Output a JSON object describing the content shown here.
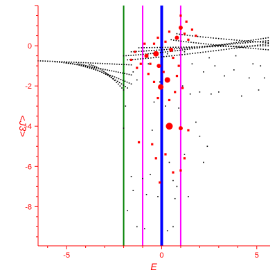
{
  "chart_data": {
    "type": "scatter",
    "title": "",
    "xlabel": "E",
    "ylabel": "<J3>",
    "xlim": [
      -6.5,
      5.7
    ],
    "ylim": [
      -9.95,
      2.0
    ],
    "x_ticks": [
      -5,
      0,
      5
    ],
    "y_ticks": [
      0,
      -2,
      -4,
      -6,
      -8
    ],
    "grid": false,
    "colors": {
      "axis": "#ff0000",
      "points_black": "#000000",
      "points_red": "#ff0000",
      "line_green": "#008000",
      "line_magenta": "#ff00ff",
      "line_blue": "#0000ff"
    },
    "vertical_lines": [
      {
        "x": -2.0,
        "color": "#008000",
        "width": 2
      },
      {
        "x": -1.0,
        "color": "#ff00ff",
        "width": 2
      },
      {
        "x": 0.0,
        "color": "#0000ff",
        "width": 4
      },
      {
        "x": 1.0,
        "color": "#ff00ff",
        "width": 2
      }
    ],
    "black_branches": [
      {
        "x_start": -6.5,
        "y_start": -0.75,
        "x_end": -1.6,
        "y_end": -0.95,
        "n": 40,
        "curve": 0.1
      },
      {
        "x_start": -5.6,
        "y_start": -0.8,
        "x_end": -1.6,
        "y_end": -1.45,
        "n": 36,
        "curve": 0.25
      },
      {
        "x_start": -5.0,
        "y_start": -0.85,
        "x_end": -1.6,
        "y_end": -1.9,
        "n": 32,
        "curve": 0.35
      },
      {
        "x_start": -4.4,
        "y_start": -0.9,
        "x_end": -1.8,
        "y_end": -2.1,
        "n": 26,
        "curve": 0.45
      },
      {
        "x_start": -3.8,
        "y_start": -0.95,
        "x_end": -2.0,
        "y_end": -2.2,
        "n": 20,
        "curve": 0.55
      },
      {
        "x_start": -2.0,
        "y_start": -0.5,
        "x_end": 5.6,
        "y_end": 0.4,
        "n": 60,
        "curve": 0.25
      },
      {
        "x_start": -1.8,
        "y_start": -0.7,
        "x_end": 5.6,
        "y_end": 0.1,
        "n": 55,
        "curve": 0.2
      },
      {
        "x_start": -1.6,
        "y_start": -0.3,
        "x_end": 5.6,
        "y_end": 0.25,
        "n": 55,
        "curve": 0.15
      },
      {
        "x_start": -1.2,
        "y_start": -0.1,
        "x_end": 5.6,
        "y_end": 0.0,
        "n": 50,
        "curve": 0.05
      },
      {
        "x_start": 0.5,
        "y_start": 0.3,
        "x_end": 5.6,
        "y_end": -0.2,
        "n": 40,
        "curve": -0.15
      },
      {
        "x_start": 0.8,
        "y_start": 0.6,
        "x_end": 5.6,
        "y_end": 0.15,
        "n": 36,
        "curve": -0.2
      }
    ],
    "black_points": [
      [
        -2.0,
        -4.1
      ],
      [
        -1.6,
        -6.5
      ],
      [
        -1.0,
        -6.6
      ],
      [
        -0.6,
        -6.4
      ],
      [
        0.6,
        -6.7
      ],
      [
        0.8,
        -7.0
      ],
      [
        -1.5,
        -7.2
      ],
      [
        -0.8,
        -7.4
      ],
      [
        -0.2,
        -7.5
      ],
      [
        0.7,
        -7.6
      ],
      [
        1.4,
        -7.5
      ],
      [
        -1.3,
        -9.0
      ],
      [
        -0.9,
        -9.1
      ],
      [
        0.3,
        -9.2
      ],
      [
        0.6,
        -9.0
      ],
      [
        1.5,
        -2.4
      ],
      [
        2.0,
        -2.3
      ],
      [
        2.6,
        -2.4
      ],
      [
        3.0,
        -2.3
      ],
      [
        4.2,
        -2.5
      ],
      [
        5.1,
        -2.2
      ],
      [
        2.2,
        -1.3
      ],
      [
        2.8,
        -1.0
      ],
      [
        3.3,
        -1.5
      ],
      [
        3.8,
        -1.2
      ],
      [
        4.6,
        -1.6
      ],
      [
        5.2,
        -1.0
      ],
      [
        1.8,
        -3.8
      ],
      [
        2.0,
        -4.5
      ],
      [
        2.4,
        -5.0
      ],
      [
        2.2,
        -5.8
      ],
      [
        1.2,
        -5.4
      ],
      [
        1.6,
        -0.9
      ],
      [
        2.5,
        -0.6
      ],
      [
        3.9,
        -0.5
      ],
      [
        4.8,
        -0.9
      ],
      [
        5.4,
        -1.6
      ],
      [
        -0.4,
        -2.8
      ],
      [
        0.2,
        -3.0
      ],
      [
        0.9,
        -3.1
      ],
      [
        1.1,
        -2.0
      ],
      [
        -0.1,
        -1.8
      ],
      [
        -1.5,
        -1.3
      ],
      [
        -1.3,
        -1.7
      ],
      [
        -0.7,
        -0.9
      ],
      [
        0.3,
        -0.4
      ],
      [
        1.2,
        -0.3
      ],
      [
        -1.9,
        -3.0
      ],
      [
        -0.5,
        -4.2
      ],
      [
        0.4,
        -5.8
      ],
      [
        -1.8,
        -8.2
      ]
    ],
    "red_points": [
      [
        0.4,
        -4.0,
        5
      ],
      [
        -0.05,
        -2.05,
        4
      ],
      [
        0.3,
        -1.7,
        4
      ],
      [
        -0.15,
        -1.0,
        3
      ],
      [
        -0.3,
        -0.4,
        4
      ],
      [
        -0.8,
        -0.5,
        3
      ],
      [
        -0.6,
        -0.9,
        2
      ],
      [
        -1.1,
        -0.9,
        2
      ],
      [
        -1.3,
        -1.1,
        2
      ],
      [
        -0.7,
        -1.4,
        2
      ],
      [
        -0.4,
        -1.8,
        2
      ],
      [
        0.7,
        -2.3,
        2
      ],
      [
        1.1,
        -2.1,
        2
      ],
      [
        1.0,
        -4.1,
        3
      ],
      [
        1.4,
        -4.2,
        2
      ],
      [
        -0.5,
        -4.9,
        2
      ],
      [
        -1.2,
        -4.8,
        2
      ],
      [
        -0.3,
        -5.6,
        2
      ],
      [
        0.2,
        -5.4,
        2
      ],
      [
        1.2,
        -5.6,
        2
      ],
      [
        0.6,
        -6.3,
        2
      ],
      [
        1.0,
        -6.2,
        2
      ],
      [
        -0.1,
        -6.8,
        2
      ],
      [
        0.5,
        -0.2,
        3
      ],
      [
        0.8,
        0.4,
        3
      ],
      [
        1.0,
        0.9,
        3
      ],
      [
        1.2,
        0.6,
        2
      ],
      [
        1.4,
        0.3,
        2
      ],
      [
        1.6,
        0.8,
        2
      ],
      [
        1.8,
        0.5,
        2
      ],
      [
        0.2,
        0.2,
        2
      ],
      [
        -0.2,
        0.4,
        2
      ],
      [
        -0.4,
        0.1,
        2
      ],
      [
        -0.9,
        0.1,
        2
      ],
      [
        -1.4,
        -0.3,
        2
      ],
      [
        -1.6,
        -0.7,
        2
      ],
      [
        0.6,
        -0.6,
        2
      ],
      [
        0.9,
        -1.0,
        2
      ],
      [
        0.1,
        -1.3,
        2
      ],
      [
        -0.2,
        -2.6,
        2
      ],
      [
        0.4,
        -2.7,
        2
      ],
      [
        0.8,
        -1.5,
        2
      ],
      [
        1.3,
        1.2,
        2
      ],
      [
        1.0,
        1.5,
        2
      ],
      [
        0.4,
        0.7,
        2
      ]
    ]
  }
}
